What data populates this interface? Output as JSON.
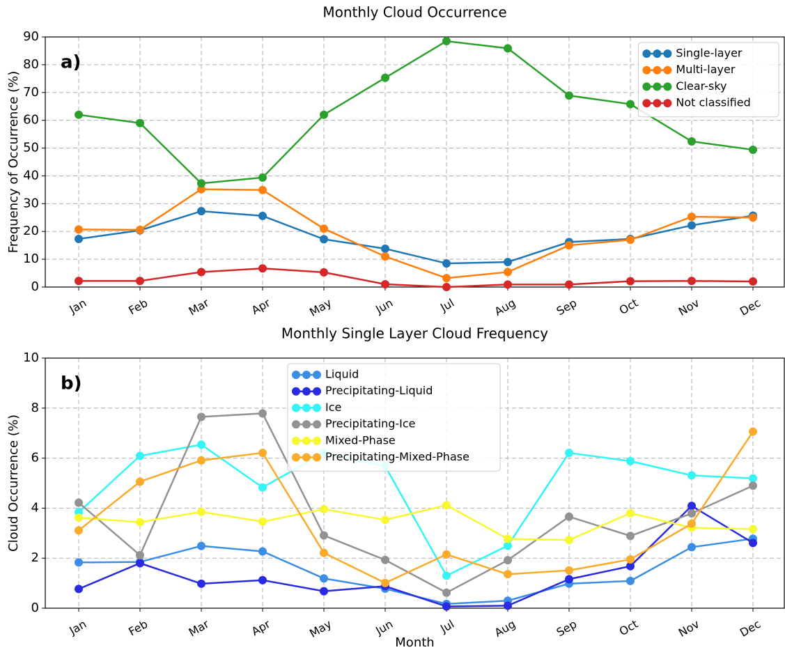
{
  "chart_data": [
    {
      "type": "line",
      "title": "Monthly Cloud Occurrence",
      "annotation": "a)",
      "y_label": "Frequency of Occurrence (%)",
      "categories": [
        "Jan",
        "Feb",
        "Mar",
        "Apr",
        "May",
        "Jun",
        "Jul",
        "Aug",
        "Sep",
        "Oct",
        "Nov",
        "Dec"
      ],
      "ylim": [
        0,
        90
      ],
      "yticks": [
        0,
        10,
        20,
        30,
        40,
        50,
        60,
        70,
        80,
        90
      ],
      "grid": true,
      "legend": "upper right",
      "series": [
        {
          "name": "Single-layer",
          "color": "#1f77b4",
          "values": [
            17.3,
            20.4,
            27.3,
            25.6,
            17.2,
            13.8,
            8.5,
            9.0,
            16.2,
            17.3,
            22.2,
            25.7
          ]
        },
        {
          "name": "Multi-layer",
          "color": "#ff7f0e",
          "values": [
            20.7,
            20.6,
            35.2,
            34.9,
            21.0,
            11.0,
            3.2,
            5.4,
            15.0,
            17.0,
            25.3,
            25.0
          ]
        },
        {
          "name": "Clear-sky",
          "color": "#2ca02c",
          "values": [
            62.0,
            59.0,
            37.3,
            39.4,
            62.0,
            75.3,
            88.5,
            85.9,
            68.9,
            65.8,
            52.4,
            49.4
          ]
        },
        {
          "name": "Not classified",
          "color": "#d62728",
          "values": [
            2.2,
            2.2,
            5.4,
            6.7,
            5.3,
            1.0,
            0.0,
            0.9,
            0.9,
            2.1,
            2.2,
            2.0
          ]
        }
      ]
    },
    {
      "type": "line",
      "title": "Monthly Single Layer Cloud Frequency",
      "annotation": "b)",
      "y_label": "Cloud Occurrence (%)",
      "x_label": "Month",
      "categories": [
        "Jan",
        "Feb",
        "Mar",
        "Apr",
        "May",
        "Jun",
        "Jul",
        "Aug",
        "Sep",
        "Oct",
        "Nov",
        "Dec"
      ],
      "ylim": [
        0,
        10
      ],
      "yticks": [
        0,
        2,
        4,
        6,
        8,
        10
      ],
      "grid": true,
      "legend": "upper center",
      "series": [
        {
          "name": "Liquid",
          "color": "#3a8ee6",
          "values": [
            1.83,
            1.85,
            2.49,
            2.27,
            1.19,
            0.78,
            0.17,
            0.3,
            0.98,
            1.09,
            2.44,
            2.78
          ]
        },
        {
          "name": "Precipitating-Liquid",
          "color": "#2a2ae0",
          "values": [
            0.77,
            1.8,
            0.98,
            1.12,
            0.68,
            0.88,
            0.07,
            0.1,
            1.16,
            1.68,
            4.09,
            2.61
          ]
        },
        {
          "name": "Ice",
          "color": "#33f5f5",
          "values": [
            3.84,
            6.09,
            6.54,
            4.83,
            6.2,
            5.68,
            1.3,
            2.5,
            6.21,
            5.88,
            5.31,
            5.19
          ]
        },
        {
          "name": "Precipitating-Ice",
          "color": "#929292",
          "values": [
            4.22,
            2.12,
            7.65,
            7.79,
            2.91,
            1.93,
            0.62,
            1.92,
            3.66,
            2.89,
            3.79,
            4.9
          ]
        },
        {
          "name": "Mixed-Phase",
          "color": "#f8f830",
          "values": [
            3.62,
            3.44,
            3.85,
            3.46,
            3.96,
            3.53,
            4.12,
            2.77,
            2.73,
            3.8,
            3.22,
            3.16
          ]
        },
        {
          "name": "Precipitating-Mixed-Phase",
          "color": "#fbab2a",
          "values": [
            3.11,
            5.06,
            5.91,
            6.21,
            2.21,
            1.01,
            2.15,
            1.36,
            1.51,
            1.95,
            3.38,
            7.06
          ]
        }
      ]
    }
  ]
}
